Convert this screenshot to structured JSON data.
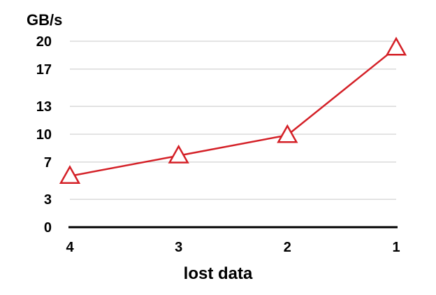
{
  "chart_data": {
    "type": "line",
    "title": "",
    "xlabel": "lost data",
    "ylabel": "GB/s",
    "categories": [
      "4",
      "3",
      "2",
      "1"
    ],
    "yticks": [
      "0",
      "3",
      "7",
      "10",
      "13",
      "17",
      "20"
    ],
    "ylim": [
      0,
      20
    ],
    "grid": true,
    "legend": "none",
    "series": [
      {
        "values": [
          5.5,
          7.7,
          9.9,
          19.3
        ],
        "color": "#d42027",
        "marker": "triangle-open"
      }
    ]
  }
}
